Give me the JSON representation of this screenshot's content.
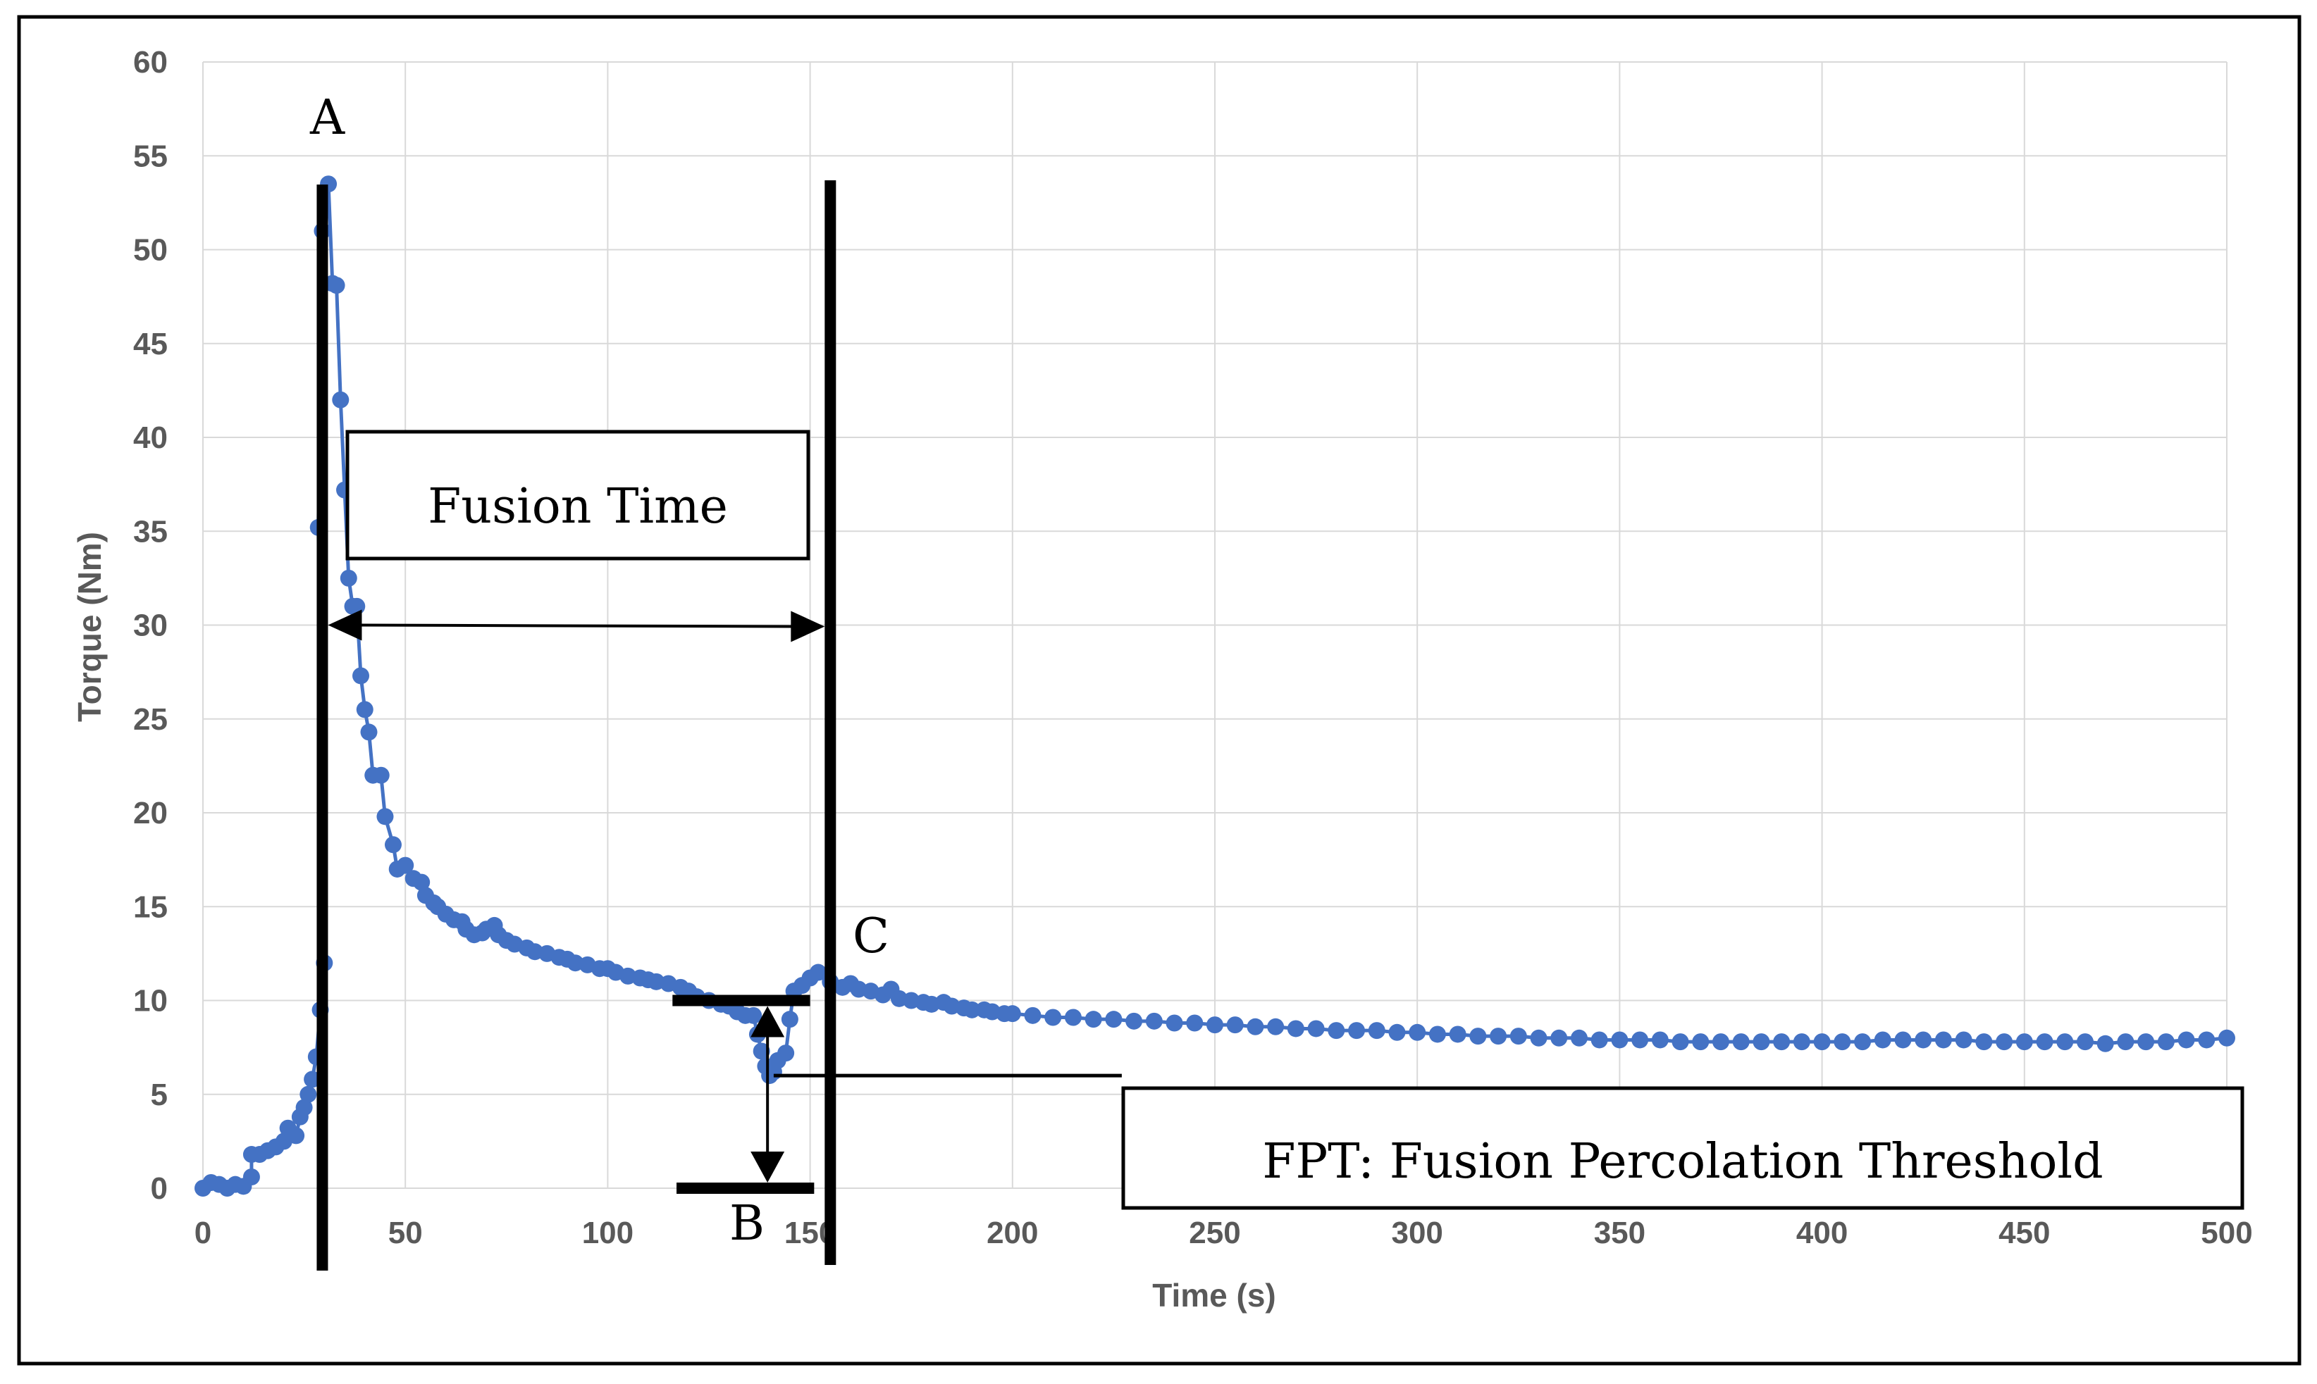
{
  "chart_data": {
    "type": "scatter",
    "title": "",
    "xlabel": "Time (s)",
    "ylabel": "Torque (Nm)",
    "xlim": [
      0,
      500
    ],
    "ylim": [
      0,
      60
    ],
    "grid": true,
    "x_ticks": [
      "0",
      "50",
      "100",
      "150",
      "200",
      "250",
      "300",
      "350",
      "400",
      "450",
      "500"
    ],
    "y_ticks": [
      "0",
      "5",
      "10",
      "15",
      "20",
      "25",
      "30",
      "35",
      "40",
      "45",
      "50",
      "55",
      "60"
    ],
    "series_color": "#4472c4",
    "series": [
      {
        "name": "Torque",
        "points": [
          [
            0,
            0.0
          ],
          [
            2,
            0.3
          ],
          [
            4,
            0.2
          ],
          [
            6,
            0.0
          ],
          [
            8,
            0.2
          ],
          [
            10,
            0.1
          ],
          [
            12,
            0.6
          ],
          [
            12,
            1.8
          ],
          [
            14,
            1.8
          ],
          [
            16,
            2.0
          ],
          [
            18,
            2.2
          ],
          [
            20,
            2.5
          ],
          [
            21,
            3.2
          ],
          [
            23,
            2.8
          ],
          [
            24,
            3.8
          ],
          [
            25,
            4.3
          ],
          [
            26,
            5.0
          ],
          [
            27,
            5.8
          ],
          [
            28,
            7.0
          ],
          [
            29,
            9.5
          ],
          [
            30,
            12.0
          ],
          [
            28.5,
            35.2
          ],
          [
            29.5,
            51.0
          ],
          [
            31,
            53.5
          ],
          [
            32,
            48.2
          ],
          [
            33,
            48.1
          ],
          [
            34,
            42.0
          ],
          [
            35,
            37.2
          ],
          [
            36,
            32.5
          ],
          [
            37,
            31.0
          ],
          [
            38,
            31.0
          ],
          [
            39,
            27.3
          ],
          [
            40,
            25.5
          ],
          [
            41,
            24.3
          ],
          [
            42,
            22.0
          ],
          [
            44,
            22.0
          ],
          [
            45,
            19.8
          ],
          [
            47,
            18.3
          ],
          [
            48,
            17.0
          ],
          [
            50,
            17.2
          ],
          [
            52,
            16.5
          ],
          [
            54,
            16.3
          ],
          [
            55,
            15.6
          ],
          [
            57,
            15.2
          ],
          [
            58,
            15.0
          ],
          [
            60,
            14.6
          ],
          [
            62,
            14.3
          ],
          [
            64,
            14.2
          ],
          [
            65,
            13.8
          ],
          [
            67,
            13.5
          ],
          [
            69,
            13.6
          ],
          [
            70,
            13.8
          ],
          [
            72,
            14.0
          ],
          [
            73,
            13.5
          ],
          [
            75,
            13.2
          ],
          [
            77,
            13.0
          ],
          [
            80,
            12.8
          ],
          [
            82,
            12.6
          ],
          [
            85,
            12.5
          ],
          [
            88,
            12.3
          ],
          [
            90,
            12.2
          ],
          [
            92,
            12.0
          ],
          [
            95,
            11.9
          ],
          [
            98,
            11.7
          ],
          [
            100,
            11.7
          ],
          [
            102,
            11.5
          ],
          [
            105,
            11.3
          ],
          [
            108,
            11.2
          ],
          [
            110,
            11.1
          ],
          [
            112,
            11.0
          ],
          [
            115,
            10.9
          ],
          [
            118,
            10.7
          ],
          [
            120,
            10.5
          ],
          [
            122,
            10.2
          ],
          [
            125,
            10.0
          ],
          [
            128,
            9.8
          ],
          [
            130,
            9.7
          ],
          [
            132,
            9.4
          ],
          [
            134,
            9.2
          ],
          [
            136,
            9.2
          ],
          [
            137,
            8.2
          ],
          [
            138,
            7.3
          ],
          [
            139,
            6.5
          ],
          [
            140,
            6.0
          ],
          [
            141,
            6.2
          ],
          [
            142,
            6.8
          ],
          [
            144,
            7.2
          ],
          [
            145,
            9.0
          ],
          [
            146,
            10.5
          ],
          [
            148,
            10.8
          ],
          [
            150,
            11.2
          ],
          [
            152,
            11.5
          ],
          [
            155,
            11.0
          ],
          [
            158,
            10.7
          ],
          [
            160,
            10.9
          ],
          [
            162,
            10.6
          ],
          [
            165,
            10.5
          ],
          [
            168,
            10.3
          ],
          [
            170,
            10.6
          ],
          [
            172,
            10.1
          ],
          [
            175,
            10.0
          ],
          [
            178,
            9.9
          ],
          [
            180,
            9.8
          ],
          [
            183,
            9.9
          ],
          [
            185,
            9.7
          ],
          [
            188,
            9.6
          ],
          [
            190,
            9.5
          ],
          [
            193,
            9.5
          ],
          [
            195,
            9.4
          ],
          [
            198,
            9.3
          ],
          [
            200,
            9.3
          ],
          [
            205,
            9.2
          ],
          [
            210,
            9.1
          ],
          [
            215,
            9.1
          ],
          [
            220,
            9.0
          ],
          [
            225,
            9.0
          ],
          [
            230,
            8.9
          ],
          [
            235,
            8.9
          ],
          [
            240,
            8.8
          ],
          [
            245,
            8.8
          ],
          [
            250,
            8.7
          ],
          [
            255,
            8.7
          ],
          [
            260,
            8.6
          ],
          [
            265,
            8.6
          ],
          [
            270,
            8.5
          ],
          [
            275,
            8.5
          ],
          [
            280,
            8.4
          ],
          [
            285,
            8.4
          ],
          [
            290,
            8.4
          ],
          [
            295,
            8.3
          ],
          [
            300,
            8.3
          ],
          [
            305,
            8.2
          ],
          [
            310,
            8.2
          ],
          [
            315,
            8.1
          ],
          [
            320,
            8.1
          ],
          [
            325,
            8.1
          ],
          [
            330,
            8.0
          ],
          [
            335,
            8.0
          ],
          [
            340,
            8.0
          ],
          [
            345,
            7.9
          ],
          [
            350,
            7.9
          ],
          [
            355,
            7.9
          ],
          [
            360,
            7.9
          ],
          [
            365,
            7.8
          ],
          [
            370,
            7.8
          ],
          [
            375,
            7.8
          ],
          [
            380,
            7.8
          ],
          [
            385,
            7.8
          ],
          [
            390,
            7.8
          ],
          [
            395,
            7.8
          ],
          [
            400,
            7.8
          ],
          [
            405,
            7.8
          ],
          [
            410,
            7.8
          ],
          [
            415,
            7.9
          ],
          [
            420,
            7.9
          ],
          [
            425,
            7.9
          ],
          [
            430,
            7.9
          ],
          [
            435,
            7.9
          ],
          [
            440,
            7.8
          ],
          [
            445,
            7.8
          ],
          [
            450,
            7.8
          ],
          [
            455,
            7.8
          ],
          [
            460,
            7.8
          ],
          [
            465,
            7.8
          ],
          [
            470,
            7.7
          ],
          [
            475,
            7.8
          ],
          [
            480,
            7.8
          ],
          [
            485,
            7.8
          ],
          [
            490,
            7.9
          ],
          [
            495,
            7.9
          ],
          [
            500,
            8.0
          ]
        ]
      }
    ],
    "annotations": {
      "label_a": "A",
      "label_b": "B",
      "label_c": "C",
      "fusion_time": "Fusion Time",
      "fpt": "FPT: Fusion Percolation Threshold",
      "line_a_x": 29.5,
      "line_c_x": 155,
      "fusion_arrow_y": 30,
      "fpt_bar_top_y": 10,
      "fpt_bar_bottom_y": 0,
      "fpt_marker_y": 6
    }
  }
}
